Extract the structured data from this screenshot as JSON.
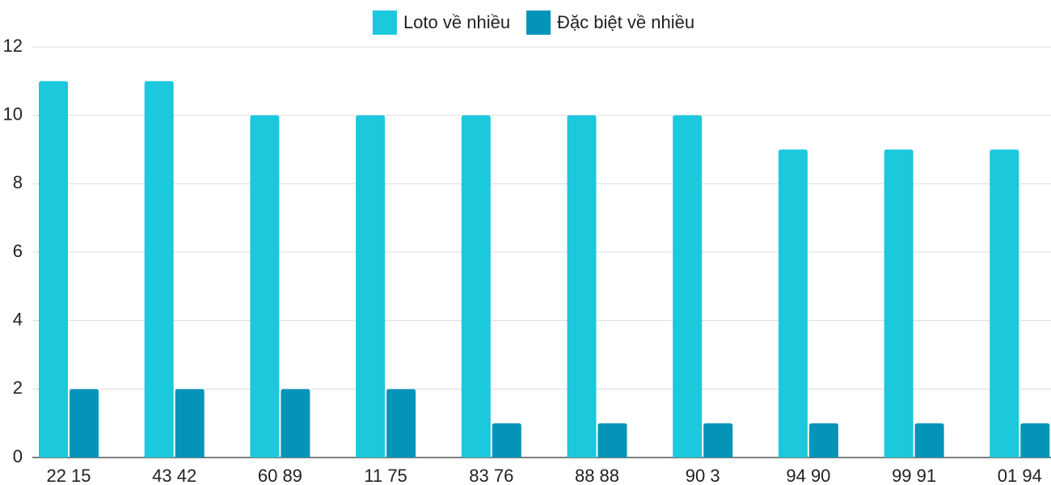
{
  "chart_data": {
    "type": "bar",
    "categories": [
      "22 15",
      "43 42",
      "60 89",
      "11 75",
      "83 76",
      "88 88",
      "90 3",
      "94 90",
      "99 91",
      "01 94"
    ],
    "series": [
      {
        "name": "Loto về nhiều",
        "color": "#1bc8dc",
        "values": [
          11,
          11,
          10,
          10,
          10,
          10,
          10,
          9,
          9,
          9
        ]
      },
      {
        "name": "Đặc biệt về nhiều",
        "color": "#0494b8",
        "values": [
          2,
          2,
          2,
          2,
          1,
          1,
          1,
          1,
          1,
          1
        ]
      }
    ],
    "ylim": [
      0,
      12
    ],
    "yticks": [
      0,
      2,
      4,
      6,
      8,
      10,
      12
    ],
    "grid": true,
    "legend": "top"
  }
}
